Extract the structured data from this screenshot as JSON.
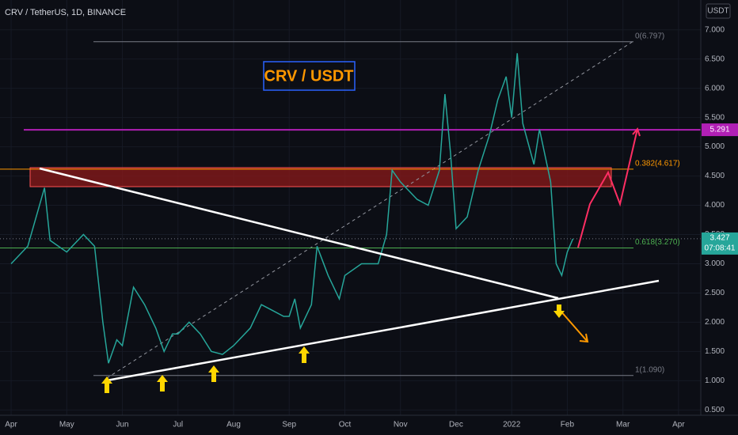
{
  "chart_data": {
    "type": "line",
    "title": "CRV / TetherUS, 1D, BINANCE",
    "annotation": "CRV / USDT",
    "currency": "USDT",
    "color": "#26a69a",
    "x": [
      0.0,
      0.3,
      0.6,
      0.7,
      1.0,
      1.3,
      1.5,
      1.65,
      1.75,
      1.9,
      2.0,
      2.2,
      2.4,
      2.6,
      2.75,
      2.9,
      3.0,
      3.2,
      3.4,
      3.6,
      3.8,
      4.0,
      4.3,
      4.5,
      4.7,
      4.9,
      5.0,
      5.1,
      5.2,
      5.4,
      5.5,
      5.7,
      5.9,
      6.0,
      6.3,
      6.6,
      6.75,
      6.85,
      7.0,
      7.3,
      7.5,
      7.7,
      7.8,
      7.9,
      8.0,
      8.2,
      8.4,
      8.6,
      8.75,
      8.9,
      9.0,
      9.1,
      9.2,
      9.4,
      9.5,
      9.7,
      9.8,
      9.9,
      10.0,
      10.1
    ],
    "values": [
      3.0,
      3.3,
      4.3,
      3.4,
      3.2,
      3.5,
      3.3,
      2.0,
      1.3,
      1.7,
      1.6,
      2.6,
      2.3,
      1.9,
      1.5,
      1.8,
      1.8,
      2.0,
      1.8,
      1.5,
      1.45,
      1.6,
      1.9,
      2.3,
      2.2,
      2.1,
      2.1,
      2.4,
      1.9,
      2.3,
      3.3,
      2.8,
      2.4,
      2.8,
      3.0,
      3.0,
      3.5,
      4.6,
      4.4,
      4.1,
      4.0,
      4.6,
      5.9,
      4.9,
      3.6,
      3.8,
      4.6,
      5.2,
      5.8,
      6.2,
      5.5,
      6.6,
      5.4,
      4.7,
      5.3,
      4.4,
      3.0,
      2.8,
      3.2,
      3.427
    ],
    "xlim": [
      -0.2,
      12.4
    ],
    "ylim": [
      0.41,
      7.51
    ],
    "xticks": [
      {
        "value": 0,
        "label": "Apr"
      },
      {
        "value": 1,
        "label": "May"
      },
      {
        "value": 2,
        "label": "Jun"
      },
      {
        "value": 3,
        "label": "Jul"
      },
      {
        "value": 4,
        "label": "Aug"
      },
      {
        "value": 5,
        "label": "Sep"
      },
      {
        "value": 6,
        "label": "Oct"
      },
      {
        "value": 7,
        "label": "Nov"
      },
      {
        "value": 8,
        "label": "Dec"
      },
      {
        "value": 9,
        "label": "2022"
      },
      {
        "value": 10,
        "label": "Feb"
      },
      {
        "value": 11,
        "label": "Mar"
      },
      {
        "value": 12,
        "label": "Apr"
      }
    ],
    "yticks": [
      {
        "value": 0.5,
        "label": "0.500"
      },
      {
        "value": 1,
        "label": "1.000"
      },
      {
        "value": 1.5,
        "label": "1.500"
      },
      {
        "value": 2,
        "label": "2.000"
      },
      {
        "value": 2.5,
        "label": "2.500"
      },
      {
        "value": 3,
        "label": "3.000"
      },
      {
        "value": 3.5,
        "label": "3.500"
      },
      {
        "value": 4,
        "label": "4.000"
      },
      {
        "value": 4.5,
        "label": "4.500"
      },
      {
        "value": 5,
        "label": "5.000"
      },
      {
        "value": 5.5,
        "label": "5.500"
      },
      {
        "value": 6,
        "label": "6.000"
      },
      {
        "value": 6.5,
        "label": "6.500"
      },
      {
        "value": 7,
        "label": "7.000"
      }
    ],
    "levels": [
      {
        "value": 6.797,
        "label": "0(6.797)",
        "color": "#787b86"
      },
      {
        "value": 4.617,
        "label": "0.382(4.617)",
        "color": "#ff9800"
      },
      {
        "value": 3.27,
        "label": "0.618(3.270)",
        "color": "#4caf50"
      },
      {
        "value": 1.09,
        "label": "1(1.090)",
        "color": "#787b86"
      }
    ],
    "resistance": {
      "value": 5.291,
      "color": "#b11fb5"
    },
    "last_price": {
      "value": 3.427,
      "color": "#26a69a",
      "countdown": "07:08:41"
    }
  }
}
